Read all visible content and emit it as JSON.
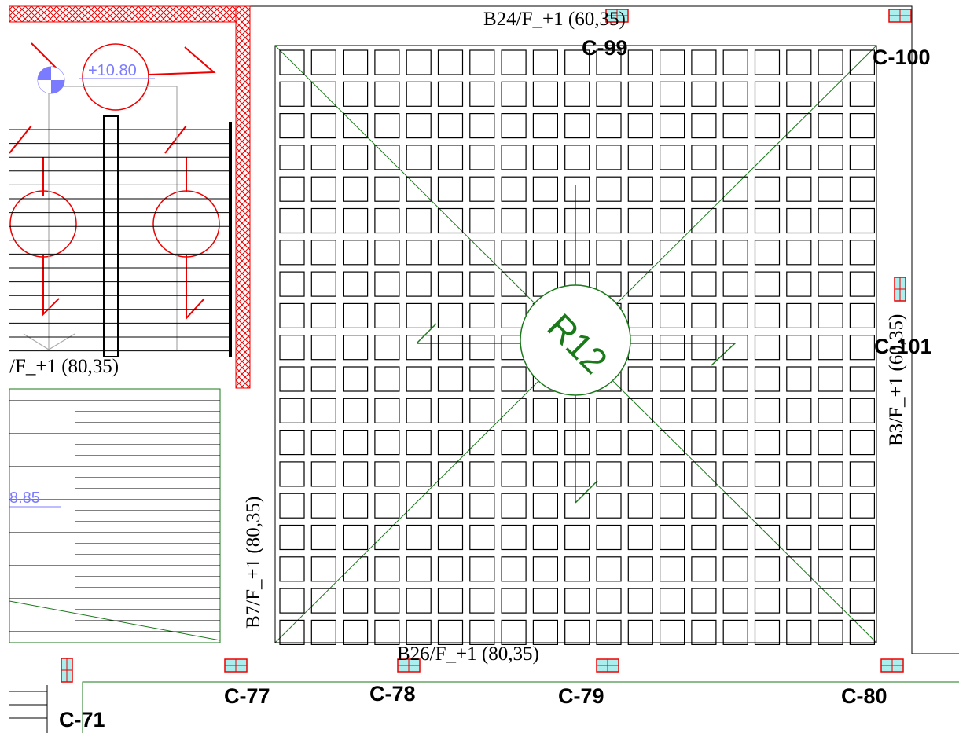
{
  "beam_labels": [
    "B24/F_+1 (60,35)",
    "/F_+1 (80,35)",
    "B3/F_+1 (60,35)",
    "B7/F_+1 (80,35)",
    "B26/F_+1 (80,35)"
  ],
  "column_labels": [
    "C-99",
    "C-100",
    "C-101",
    "C-77",
    "C-78",
    "C-79",
    "C-80",
    "C-71"
  ],
  "level_labels": [
    "+10.80",
    "8.85"
  ],
  "room_label": "R12"
}
